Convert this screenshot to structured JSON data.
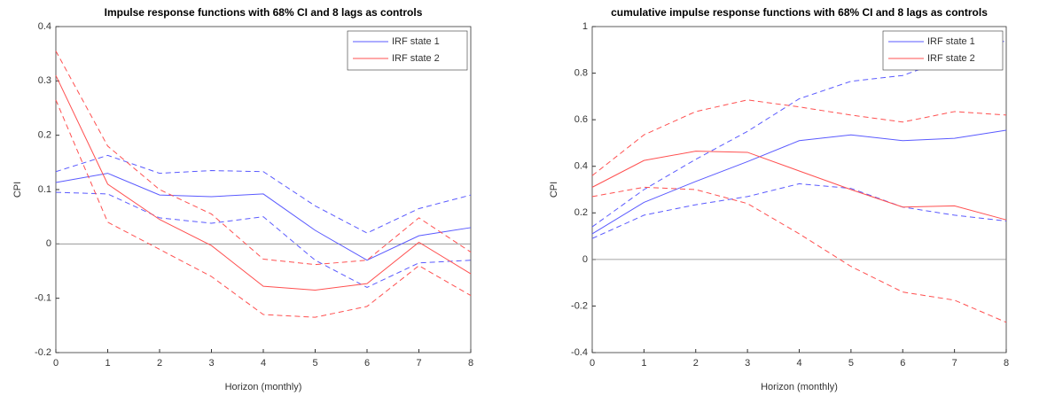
{
  "chart_data": [
    {
      "type": "line",
      "title": "Impulse response functions with 68% CI and 8 lags as controls",
      "xlabel": "Horizon (monthly)",
      "ylabel": "CPI",
      "x": [
        0,
        1,
        2,
        3,
        4,
        5,
        6,
        7,
        8
      ],
      "xlim": [
        0,
        8
      ],
      "xticks": [
        0,
        1,
        2,
        3,
        4,
        5,
        6,
        7,
        8
      ],
      "ylim": [
        -0.2,
        0.4
      ],
      "yticks": [
        -0.2,
        -0.1,
        0,
        0.1,
        0.2,
        0.3,
        0.4
      ],
      "legend": "upper right",
      "series": [
        {
          "name": "IRF state 1",
          "color": "#5a5aff",
          "values": [
            0.113,
            0.13,
            0.09,
            0.087,
            0.092,
            0.025,
            -0.03,
            0.015,
            0.03
          ],
          "upper": [
            0.133,
            0.163,
            0.13,
            0.135,
            0.133,
            0.07,
            0.02,
            0.065,
            0.09
          ],
          "lower": [
            0.095,
            0.092,
            0.048,
            0.038,
            0.05,
            -0.03,
            -0.08,
            -0.035,
            -0.03
          ]
        },
        {
          "name": "IRF state 2",
          "color": "#ff5050",
          "values": [
            0.31,
            0.11,
            0.045,
            -0.003,
            -0.078,
            -0.085,
            -0.073,
            0.003,
            -0.055
          ],
          "upper": [
            0.355,
            0.18,
            0.1,
            0.055,
            -0.028,
            -0.038,
            -0.03,
            0.048,
            -0.015
          ],
          "lower": [
            0.265,
            0.04,
            -0.01,
            -0.06,
            -0.13,
            -0.135,
            -0.115,
            -0.04,
            -0.095
          ]
        }
      ]
    },
    {
      "type": "line",
      "title": "cumulative impulse response functions with 68% CI and 8 lags as controls",
      "xlabel": "Horizon (monthly)",
      "ylabel": "CPI",
      "x": [
        0,
        1,
        2,
        3,
        4,
        5,
        6,
        7,
        8
      ],
      "xlim": [
        0,
        8
      ],
      "xticks": [
        0,
        1,
        2,
        3,
        4,
        5,
        6,
        7,
        8
      ],
      "ylim": [
        -0.4,
        1
      ],
      "yticks": [
        -0.4,
        -0.2,
        0,
        0.2,
        0.4,
        0.6,
        0.8,
        1
      ],
      "legend": "upper right",
      "series": [
        {
          "name": "IRF state 1",
          "color": "#5a5aff",
          "values": [
            0.11,
            0.245,
            0.335,
            0.42,
            0.51,
            0.535,
            0.51,
            0.52,
            0.555
          ],
          "upper": [
            0.14,
            0.3,
            0.43,
            0.55,
            0.69,
            0.765,
            0.79,
            0.87,
            0.94
          ],
          "lower": [
            0.09,
            0.19,
            0.235,
            0.27,
            0.325,
            0.305,
            0.225,
            0.19,
            0.165
          ]
        },
        {
          "name": "IRF state 2",
          "color": "#ff5050",
          "values": [
            0.31,
            0.425,
            0.465,
            0.46,
            0.38,
            0.3,
            0.225,
            0.23,
            0.17
          ],
          "upper": [
            0.36,
            0.535,
            0.635,
            0.685,
            0.655,
            0.62,
            0.59,
            0.635,
            0.62
          ],
          "lower": [
            0.27,
            0.31,
            0.3,
            0.24,
            0.11,
            -0.03,
            -0.14,
            -0.175,
            -0.27
          ]
        }
      ]
    }
  ]
}
